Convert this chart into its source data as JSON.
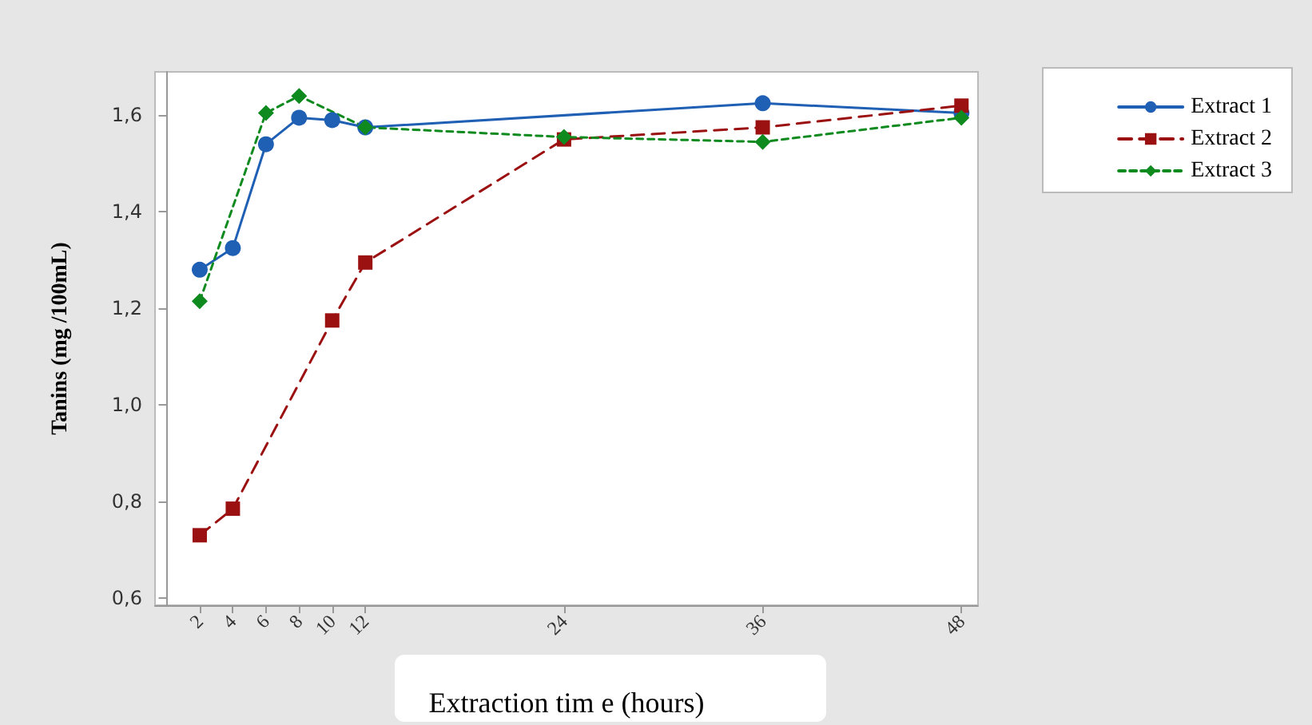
{
  "chart_data": {
    "type": "line",
    "xlabel": "Extraction tim e (hours)",
    "ylabel": "Tanins (mg /100mL)",
    "xlim": [
      -0.7,
      49
    ],
    "xticks": [
      2,
      4,
      6,
      8,
      10,
      12,
      24,
      36,
      48
    ],
    "ylim": [
      0.585,
      1.69
    ],
    "yticks": [
      {
        "value": 0.6,
        "label": "0,6"
      },
      {
        "value": 0.8,
        "label": "0,8"
      },
      {
        "value": 1.0,
        "label": "1,0"
      },
      {
        "value": 1.2,
        "label": "1,2"
      },
      {
        "value": 1.4,
        "label": "1,4"
      },
      {
        "value": 1.6,
        "label": "1,6"
      }
    ],
    "grid": false,
    "legend": "top right",
    "series": [
      {
        "name": "Extract 1",
        "color": "#1f5fb4",
        "marker": "circle",
        "line_style": "solid",
        "x": [
          2,
          4,
          6,
          8,
          10,
          12,
          36,
          48
        ],
        "values": [
          1.28,
          1.325,
          1.54,
          1.595,
          1.59,
          1.575,
          1.625,
          1.605
        ]
      },
      {
        "name": "Extract 2",
        "color": "#9b1111",
        "marker": "square",
        "line_style": "dashed",
        "x": [
          2,
          4,
          10,
          12,
          24,
          36,
          48
        ],
        "values": [
          0.73,
          0.785,
          1.175,
          1.295,
          1.55,
          1.575,
          1.62
        ]
      },
      {
        "name": "Extract 3",
        "color": "#0f8a1f",
        "marker": "diamond",
        "line_style": "dotted",
        "x": [
          2,
          6,
          8,
          12,
          24,
          36,
          48
        ],
        "values": [
          1.215,
          1.605,
          1.64,
          1.575,
          1.555,
          1.545,
          1.595
        ]
      }
    ]
  }
}
